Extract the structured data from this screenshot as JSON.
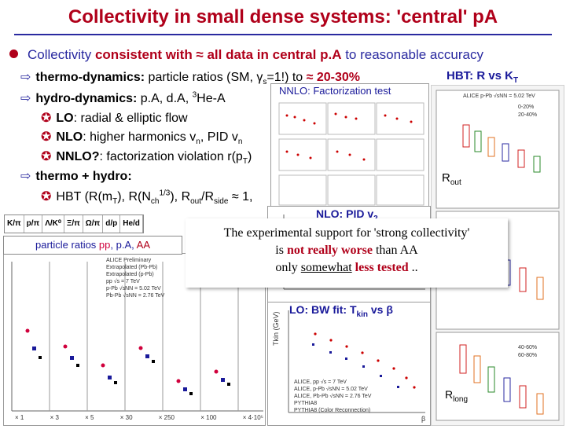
{
  "title": "Collectivity in small dense systems: 'central' pA",
  "main_bullet": {
    "pre": "Collectivity ",
    "hl": "consistent with ≈ all data in central p.A",
    "post": " to reasonable accuracy"
  },
  "lines": {
    "thermo_dyn_label": "thermo-dynamics:",
    "thermo_dyn_text": " particle ratios (SM, γ",
    "thermo_dyn_sub": "s",
    "thermo_dyn_text2": "=1!) to ",
    "thermo_dyn_hl": "≈ 20-30%",
    "hydro_label": "hydro-dynamics:",
    "hydro_text": " p.A, d.A, ",
    "hydro_sup": "3",
    "hydro_text2": "He-A",
    "lo_label": "LO",
    "lo_text": ": radial & elliptic flow",
    "nlo_label": "NLO",
    "nlo_text": ": higher harmonics v",
    "nlo_sub": "n",
    "nlo_text2": ", PID   v",
    "nlo_sub2": "n",
    "nnlo_label": "NNLO?",
    "nnlo_text": ": factorization violation r(p",
    "nnlo_sub": "T",
    "nnlo_text2": ")",
    "thermo_hydro_label": "thermo + hydro:",
    "hbt_text": "HBT (R(m",
    "hbt_sub1": "T",
    "hbt_text2": "), R(N",
    "hbt_sub2": "ch",
    "hbt_sup": "1/3",
    "hbt_text3": "),  R",
    "hbt_sub3": "out",
    "hbt_text4": "/R",
    "hbt_sub4": "side",
    "hbt_text5": " ≈ 1,"
  },
  "callouts": {
    "hbt": "HBT: R vs K",
    "hbt_sub": "T",
    "nnlo_fact": "NNLO: Factorization test",
    "nlo_pid": "NLO: PID v",
    "nlo_pid_sub": "2",
    "lo_bw": "LO: BW fit: T",
    "lo_bw_sub": "kin",
    "lo_bw_tail": " vs β",
    "rout": "R",
    "rout_sub": "out",
    "rlong": "R",
    "rlong_sub": "long"
  },
  "particle_ratios": {
    "label_pre": "particle ratios ",
    "pp": "pp",
    "pa": "p.A",
    "aa": "AA",
    "header": [
      "K/π",
      "p/π",
      "Λ/K⁰",
      "Ξ/π",
      "Ω/π",
      "d/p",
      "He/d"
    ],
    "legend": [
      "ALICE Preliminary",
      "Extrapolated (Pb-Pb)",
      "Extrapolated (p-Pb)",
      "pp √s = 7 TeV",
      "p-Pb √sNN = 5.02 TeV",
      "Pb-Pb √sNN = 2.76 TeV"
    ],
    "scales": [
      "× 1",
      "× 3",
      "× 5",
      "× 30",
      "× 250",
      "× 100",
      "× 4·10⁵"
    ]
  },
  "overlay": {
    "line1": "The experimental support for 'strong collectivity'",
    "line2_pre": "is ",
    "line2_hl": "not really worse",
    "line2_post": " than AA",
    "line3_pre": "only ",
    "line3_u": "somewhat",
    "line3_hl": " less tested",
    "line3_post": " .."
  },
  "hbt_panel": {
    "caption": "ALICE p-Pb √sNN = 5.02 TeV",
    "legend": [
      "0-20%",
      "20-40%",
      "40-60%",
      "60-80%"
    ]
  },
  "bw_panel": {
    "ylabel": "Tkin (GeV)",
    "legend": [
      "ALICE, pp √s = 7 TeV",
      "ALICE, p-Pb √sNN = 5.02 TeV",
      "ALICE, Pb-Pb √sNN = 2.76 TeV",
      "PYTHIA8",
      "PYTHIA8 (Color Reconnection)"
    ],
    "bottom": "β"
  },
  "colors": {
    "title": "#b0001a",
    "accent_blue": "#2a2aa0",
    "callout_blue": "#1a1a9a",
    "pp_color": "#d0003c",
    "pa_color": "#1a1a9a",
    "aa_color": "#b0001a"
  }
}
